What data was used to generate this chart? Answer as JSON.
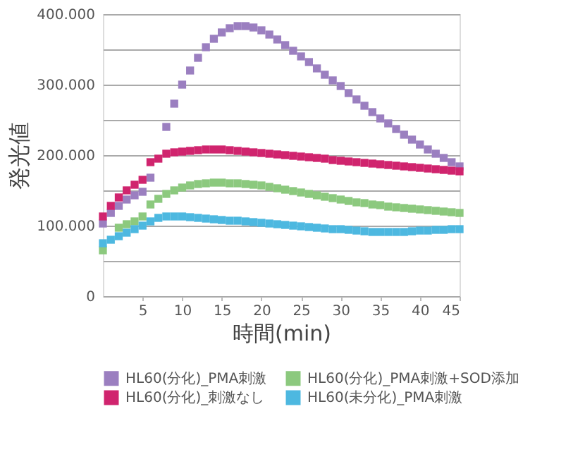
{
  "chart_data": {
    "type": "scatter",
    "xlabel": "時間(min)",
    "ylabel": "発光値",
    "marker": "square",
    "grid": "y",
    "legend": "bottom",
    "x": [
      0,
      1,
      2,
      3,
      4,
      5,
      6,
      7,
      8,
      9,
      10,
      11,
      12,
      13,
      14,
      15,
      16,
      17,
      18,
      19,
      20,
      21,
      22,
      23,
      24,
      25,
      26,
      27,
      28,
      29,
      30,
      31,
      32,
      33,
      34,
      35,
      36,
      37,
      38,
      39,
      40,
      41,
      42,
      43,
      44,
      45
    ],
    "xlim": [
      0,
      45
    ],
    "xticks": [
      5,
      10,
      15,
      20,
      25,
      30,
      35,
      40,
      45
    ],
    "ylim": [
      0,
      400000
    ],
    "yticks": [
      {
        "value": 0,
        "label": "0"
      },
      {
        "value": 50000,
        "label": null
      },
      {
        "value": 100000,
        "label": "100.000"
      },
      {
        "value": 150000,
        "label": null
      },
      {
        "value": 200000,
        "label": "200.000"
      },
      {
        "value": 250000,
        "label": null
      },
      {
        "value": 300000,
        "label": "300.000"
      },
      {
        "value": 350000,
        "label": null
      },
      {
        "value": 400000,
        "label": "400.000"
      }
    ],
    "series": [
      {
        "name": "HL60(分化)_PMA刺激",
        "color": "#9b7fc0",
        "values": [
          103000,
          118000,
          128000,
          137000,
          143000,
          148000,
          168000,
          null,
          240000,
          273000,
          300000,
          320000,
          338000,
          353000,
          365000,
          374000,
          380000,
          383000,
          383000,
          381000,
          377000,
          371000,
          364000,
          356000,
          348000,
          340000,
          332000,
          323000,
          314000,
          306000,
          298000,
          288000,
          279000,
          270000,
          261000,
          252000,
          245000,
          237000,
          229000,
          222000,
          215000,
          208000,
          202000,
          196000,
          190000,
          184000
        ]
      },
      {
        "name": "HL60(分化)_PMA刺激+SOD添加",
        "color": "#8cc97e",
        "values": [
          65000,
          null,
          97000,
          102000,
          106000,
          113000,
          130000,
          138000,
          145000,
          150000,
          154000,
          157000,
          159000,
          160000,
          161000,
          161000,
          160000,
          160000,
          159000,
          158000,
          157000,
          155000,
          153000,
          151000,
          149000,
          147000,
          145000,
          143000,
          141000,
          139000,
          137000,
          135000,
          133000,
          132000,
          130000,
          129000,
          127000,
          126000,
          125000,
          124000,
          123000,
          122000,
          121000,
          120000,
          119000,
          118000
        ]
      },
      {
        "name": "HL60(分化)_刺激なし",
        "color": "#d0246e",
        "values": [
          113000,
          128000,
          140000,
          150000,
          158000,
          165000,
          190000,
          195000,
          202000,
          204000,
          205000,
          206000,
          207000,
          208000,
          208000,
          208000,
          207000,
          206000,
          205000,
          204000,
          203000,
          202000,
          201000,
          200000,
          199000,
          198000,
          197000,
          196000,
          195000,
          193000,
          192000,
          191000,
          190000,
          189000,
          188000,
          187000,
          186000,
          185000,
          184000,
          183000,
          182000,
          181000,
          180000,
          179000,
          178000,
          177000
        ]
      },
      {
        "name": "HL60(未分化)_PMA刺激",
        "color": "#4db8e0",
        "values": [
          75000,
          80000,
          85000,
          90000,
          95000,
          100000,
          106000,
          111000,
          113000,
          113000,
          113000,
          112000,
          111000,
          110000,
          109000,
          108000,
          107000,
          107000,
          106000,
          105000,
          104000,
          103000,
          102000,
          101000,
          100000,
          99000,
          98000,
          97000,
          96000,
          95000,
          95000,
          94000,
          93000,
          92000,
          91000,
          91000,
          91000,
          91000,
          91000,
          92000,
          93000,
          93000,
          94000,
          94000,
          95000,
          95000
        ]
      }
    ]
  }
}
